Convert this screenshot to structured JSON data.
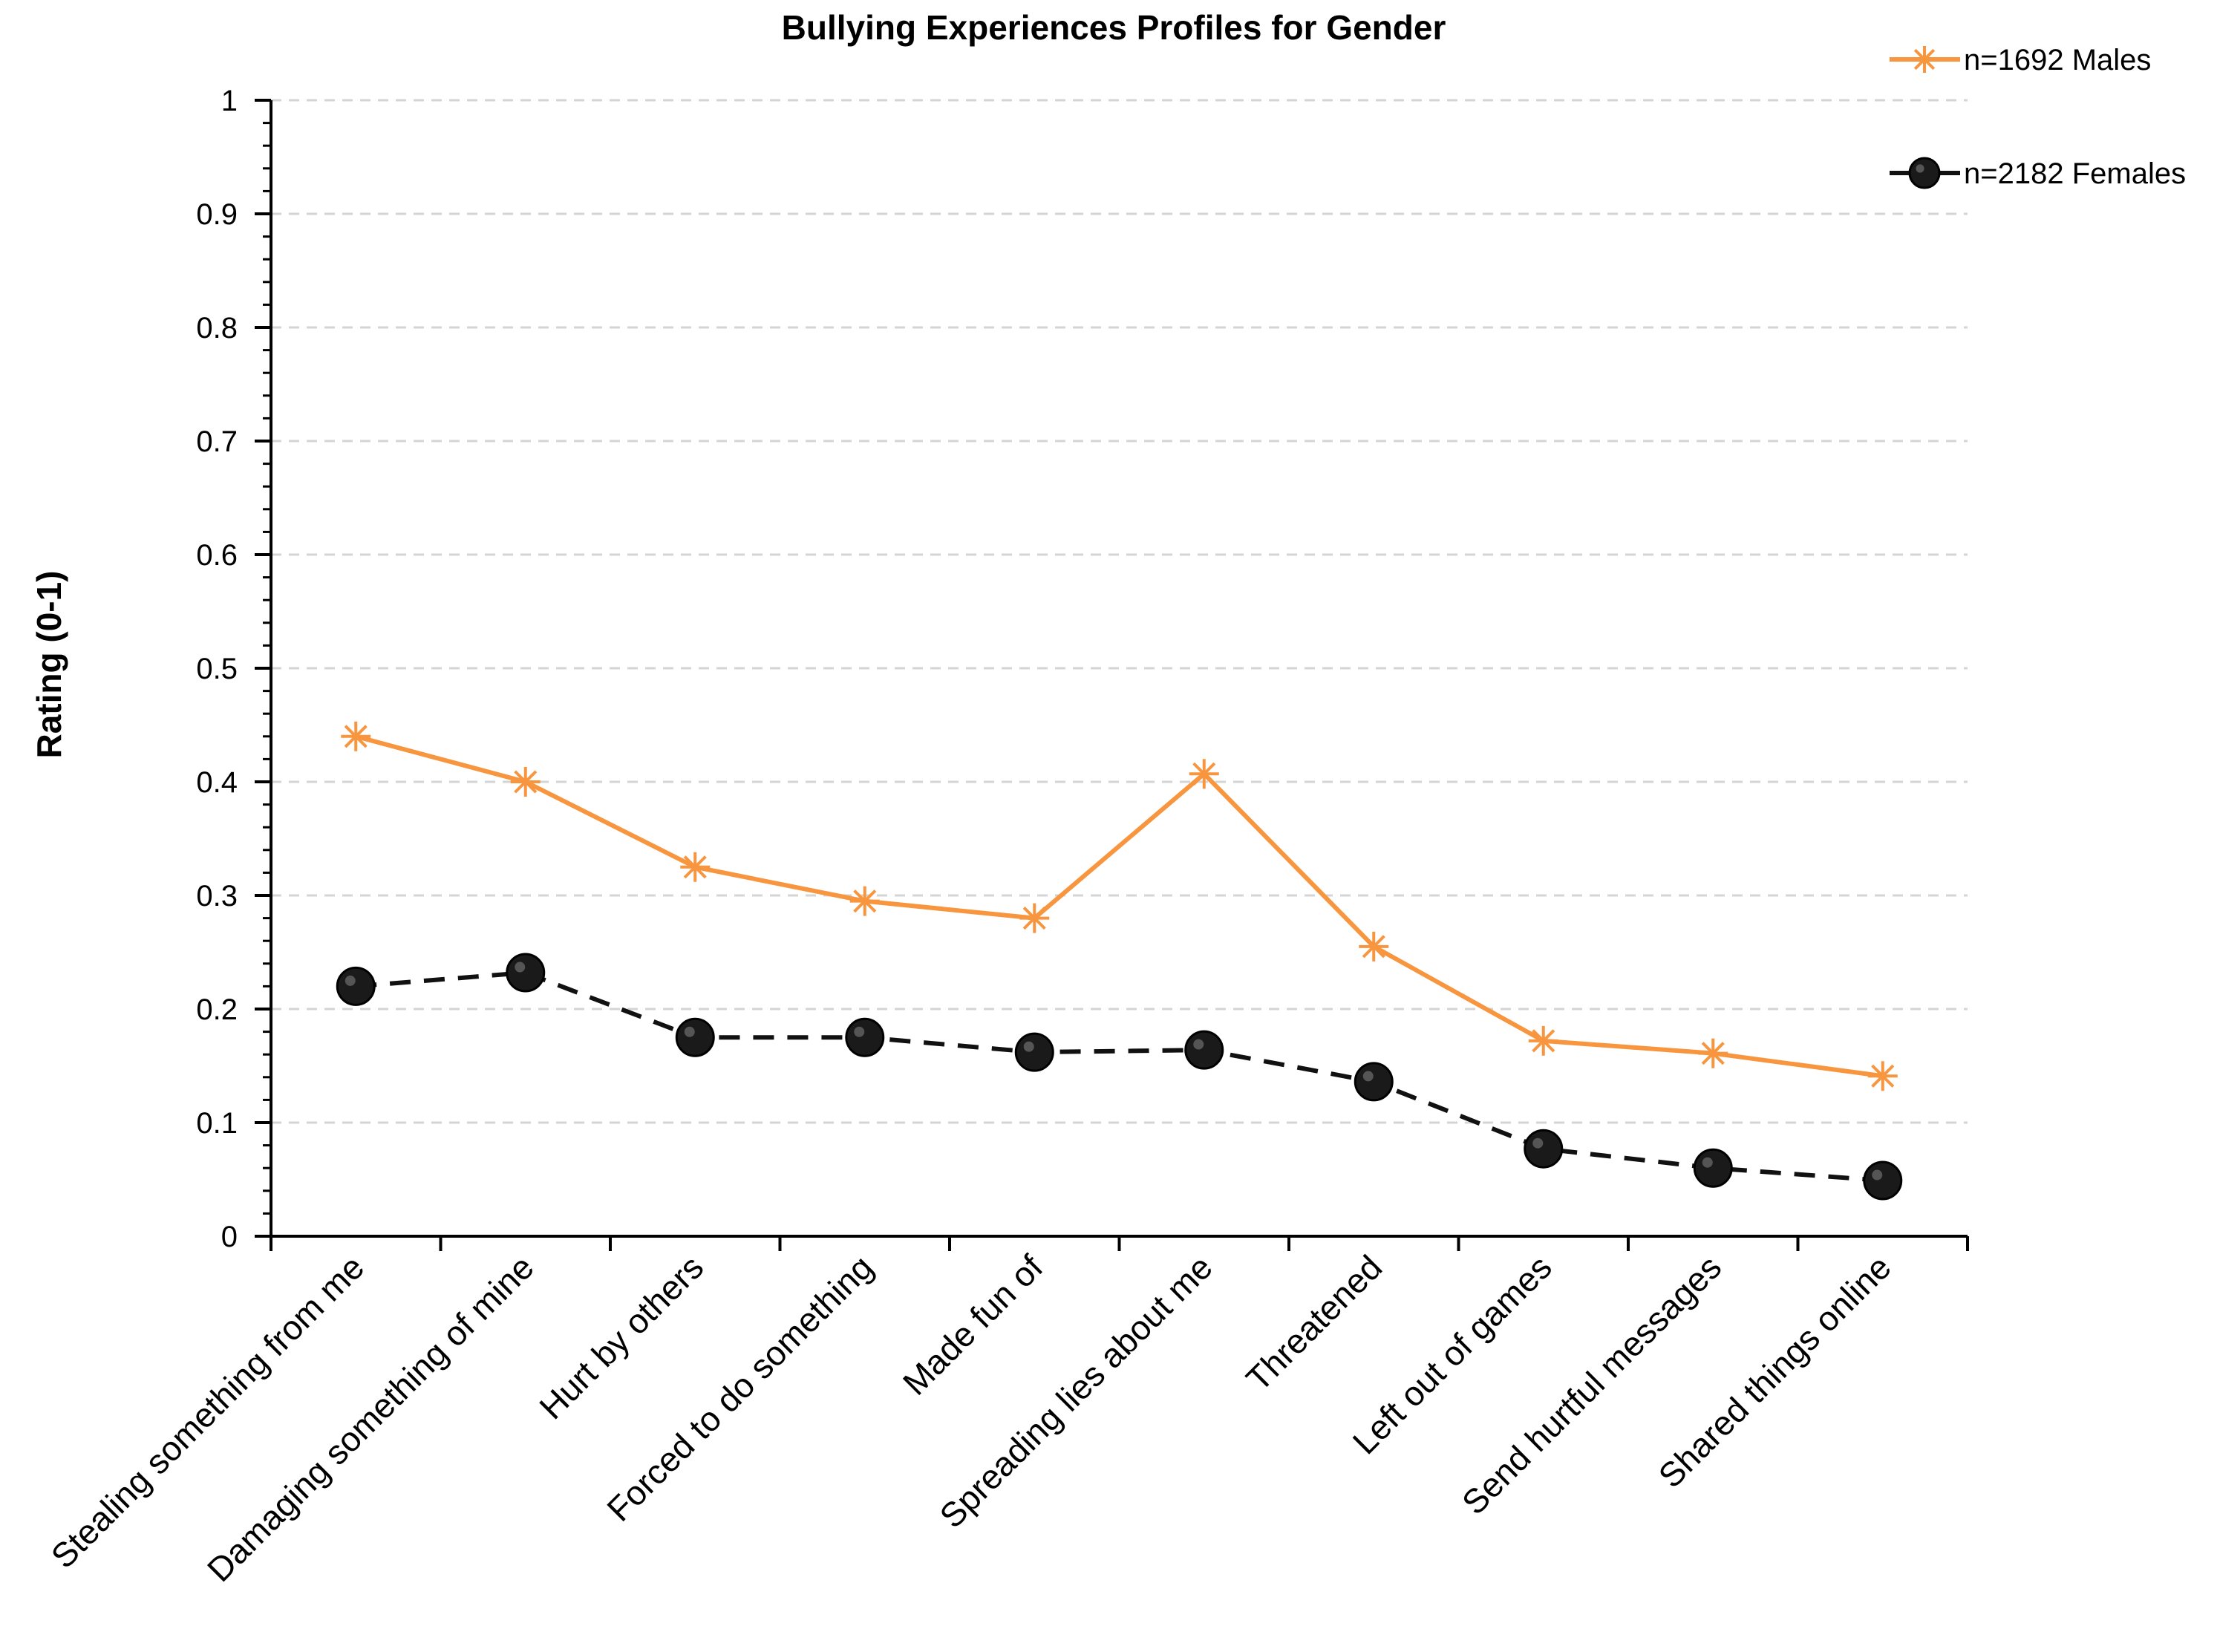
{
  "chart_data": {
    "type": "line",
    "title": "Bullying Experiences Profiles for Gender",
    "xlabel": "",
    "ylabel": "Rating (0-1)",
    "ylim": [
      0,
      1
    ],
    "yticks": [
      "0",
      "0.1",
      "0.2",
      "0.3",
      "0.4",
      "0.5",
      "0.6",
      "0.7",
      "0.8",
      "0.9",
      "1"
    ],
    "grid": true,
    "legend_position": "top-right",
    "categories": [
      "Stealing something from me",
      "Damaging something of mine",
      "Hurt by others",
      "Forced to do something",
      "Made fun of",
      "Spreading lies about me",
      "Threatened",
      "Left out of games",
      "Send hurtful messages",
      "Shared things online"
    ],
    "series": [
      {
        "name": "n=1692 Males",
        "color": "#f7963f",
        "marker": "asterisk",
        "line_style": "solid",
        "values": [
          0.44,
          0.4,
          0.325,
          0.295,
          0.28,
          0.407,
          0.255,
          0.172,
          0.161,
          0.141
        ]
      },
      {
        "name": "n=2182 Females",
        "color": "#111111",
        "marker": "circle",
        "line_style": "dashed",
        "values": [
          0.22,
          0.232,
          0.175,
          0.175,
          0.162,
          0.164,
          0.136,
          0.077,
          0.06,
          0.049
        ]
      }
    ]
  }
}
